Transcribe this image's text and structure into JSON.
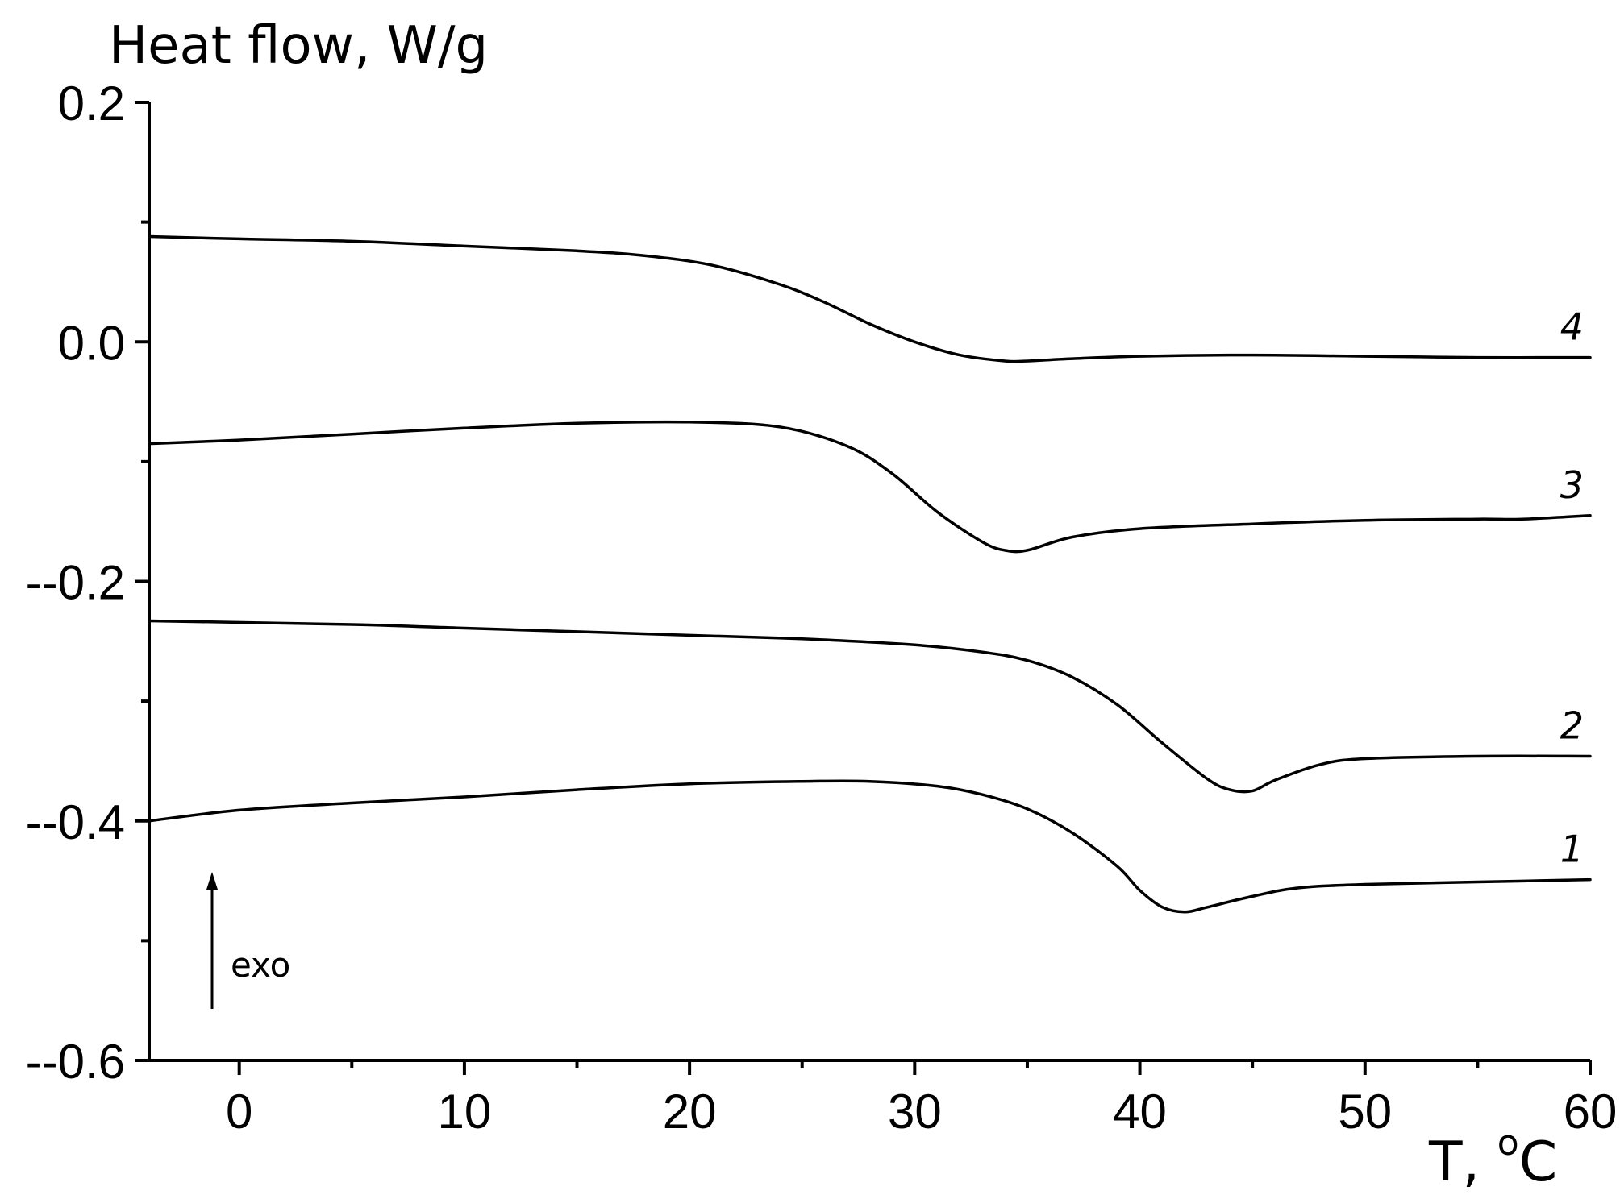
{
  "chart_data": {
    "type": "line",
    "title": "",
    "ylabel": "Heat flow, W/g",
    "xlabel": "T, °C",
    "xlabel_parts": {
      "main": "T, ",
      "degree": "o",
      "unit": "C"
    },
    "xlim": [
      -4,
      60
    ],
    "ylim": [
      -0.6,
      0.2
    ],
    "x_ticks": [
      0,
      10,
      20,
      30,
      40,
      50,
      60
    ],
    "x_tick_labels": [
      "0",
      "10",
      "20",
      "30",
      "40",
      "50",
      "60"
    ],
    "x_minor_ticks": [
      5,
      15,
      25,
      35,
      45,
      55
    ],
    "y_ticks": [
      0.2,
      0.0,
      -0.2,
      -0.4,
      -0.6
    ],
    "y_tick_labels": [
      "0.2",
      "0.0",
      "--0.2",
      "--0.4",
      "--0.6"
    ],
    "y_minor_ticks": [
      0.1,
      -0.1,
      -0.3,
      -0.5
    ],
    "grid": false,
    "legend": "none",
    "annotation": {
      "text": "exo",
      "arrow_direction": "up"
    },
    "series": [
      {
        "label": "1",
        "points": [
          [
            -4,
            -0.4
          ],
          [
            0,
            -0.391
          ],
          [
            5,
            -0.385
          ],
          [
            10,
            -0.38
          ],
          [
            15,
            -0.374
          ],
          [
            20,
            -0.369
          ],
          [
            25,
            -0.367
          ],
          [
            28,
            -0.367
          ],
          [
            31,
            -0.371
          ],
          [
            33,
            -0.378
          ],
          [
            35,
            -0.39
          ],
          [
            37,
            -0.41
          ],
          [
            39,
            -0.438
          ],
          [
            40,
            -0.458
          ],
          [
            41,
            -0.472
          ],
          [
            42,
            -0.476
          ],
          [
            43,
            -0.472
          ],
          [
            45,
            -0.463
          ],
          [
            47,
            -0.456
          ],
          [
            50,
            -0.453
          ],
          [
            55,
            -0.451
          ],
          [
            60,
            -0.449
          ]
        ]
      },
      {
        "label": "2",
        "points": [
          [
            -4,
            -0.233
          ],
          [
            5,
            -0.236
          ],
          [
            10,
            -0.239
          ],
          [
            15,
            -0.242
          ],
          [
            20,
            -0.245
          ],
          [
            25,
            -0.248
          ],
          [
            30,
            -0.253
          ],
          [
            33,
            -0.259
          ],
          [
            35,
            -0.266
          ],
          [
            37,
            -0.28
          ],
          [
            39,
            -0.303
          ],
          [
            41,
            -0.335
          ],
          [
            43,
            -0.365
          ],
          [
            44,
            -0.374
          ],
          [
            45,
            -0.375
          ],
          [
            46,
            -0.366
          ],
          [
            48,
            -0.353
          ],
          [
            50,
            -0.348
          ],
          [
            55,
            -0.346
          ],
          [
            60,
            -0.346
          ]
        ]
      },
      {
        "label": "3",
        "points": [
          [
            -4,
            -0.085
          ],
          [
            0,
            -0.082
          ],
          [
            5,
            -0.077
          ],
          [
            10,
            -0.072
          ],
          [
            15,
            -0.068
          ],
          [
            20,
            -0.067
          ],
          [
            24,
            -0.071
          ],
          [
            27,
            -0.087
          ],
          [
            29,
            -0.11
          ],
          [
            31,
            -0.142
          ],
          [
            33,
            -0.167
          ],
          [
            34,
            -0.174
          ],
          [
            35,
            -0.174
          ],
          [
            37,
            -0.163
          ],
          [
            40,
            -0.156
          ],
          [
            45,
            -0.152
          ],
          [
            50,
            -0.149
          ],
          [
            55,
            -0.148
          ],
          [
            57,
            -0.148
          ],
          [
            60,
            -0.145
          ]
        ]
      },
      {
        "label": "4",
        "points": [
          [
            -4,
            0.088
          ],
          [
            0,
            0.086
          ],
          [
            5,
            0.084
          ],
          [
            10,
            0.08
          ],
          [
            15,
            0.076
          ],
          [
            18,
            0.072
          ],
          [
            21,
            0.064
          ],
          [
            24,
            0.048
          ],
          [
            26,
            0.033
          ],
          [
            28,
            0.015
          ],
          [
            30,
            0.0
          ],
          [
            32,
            -0.011
          ],
          [
            34,
            -0.016
          ],
          [
            35,
            -0.016
          ],
          [
            37,
            -0.014
          ],
          [
            40,
            -0.012
          ],
          [
            45,
            -0.011
          ],
          [
            50,
            -0.012
          ],
          [
            55,
            -0.013
          ],
          [
            60,
            -0.013
          ]
        ]
      }
    ]
  }
}
